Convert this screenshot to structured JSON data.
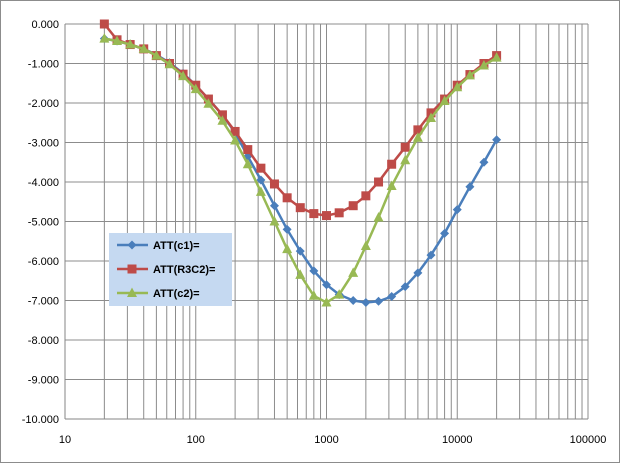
{
  "chart_data": {
    "type": "line",
    "title": "",
    "xlabel": "",
    "ylabel": "",
    "x_scale": "log",
    "xlim": [
      10,
      100000
    ],
    "ylim": [
      -10,
      0
    ],
    "x_tick_labels": [
      "10",
      "100",
      "1000",
      "10000",
      "100000"
    ],
    "y_tick_labels": [
      "0.000",
      "-1.000",
      "-2.000",
      "-3.000",
      "-4.000",
      "-5.000",
      "-6.000",
      "-7.000",
      "-8.000",
      "-9.000",
      "-10.000"
    ],
    "grid": true,
    "legend_position": "center-left",
    "series": [
      {
        "name": "ATT(c1)=",
        "color": "#4a7ebb",
        "marker": "diamond",
        "x": [
          20,
          25,
          31.5,
          40,
          50,
          63,
          80,
          100,
          125,
          160,
          200,
          250,
          315,
          400,
          500,
          630,
          800,
          1000,
          1250,
          1600,
          2000,
          2500,
          3150,
          4000,
          5000,
          6300,
          8000,
          10000,
          12500,
          16000,
          20000
        ],
        "y": [
          -0.37,
          -0.43,
          -0.52,
          -0.63,
          -0.78,
          -0.98,
          -1.25,
          -1.55,
          -1.9,
          -2.3,
          -2.75,
          -3.35,
          -3.95,
          -4.6,
          -5.2,
          -5.75,
          -6.25,
          -6.6,
          -6.85,
          -7.0,
          -7.05,
          -7.02,
          -6.9,
          -6.65,
          -6.3,
          -5.85,
          -5.3,
          -4.7,
          -4.12,
          -3.5,
          -2.93
        ]
      },
      {
        "name": "ATT(R3C2)=",
        "color": "#be4b48",
        "marker": "square",
        "x": [
          20,
          25,
          31.5,
          40,
          50,
          63,
          80,
          100,
          125,
          160,
          200,
          250,
          315,
          400,
          500,
          630,
          800,
          1000,
          1250,
          1600,
          2000,
          2500,
          3150,
          4000,
          5000,
          6300,
          8000,
          10000,
          12500,
          16000,
          20000
        ],
        "y": [
          0.0,
          -0.4,
          -0.52,
          -0.63,
          -0.8,
          -1.0,
          -1.27,
          -1.55,
          -1.9,
          -2.3,
          -2.72,
          -3.18,
          -3.65,
          -4.05,
          -4.4,
          -4.65,
          -4.8,
          -4.85,
          -4.78,
          -4.6,
          -4.35,
          -4.0,
          -3.55,
          -3.12,
          -2.68,
          -2.25,
          -1.9,
          -1.55,
          -1.28,
          -1.0,
          -0.8
        ]
      },
      {
        "name": "ATT(c2)=",
        "color": "#98b954",
        "marker": "triangle",
        "x": [
          20,
          25,
          31.5,
          40,
          50,
          63,
          80,
          100,
          125,
          160,
          200,
          250,
          315,
          400,
          500,
          630,
          800,
          1000,
          1250,
          1600,
          2000,
          2500,
          3150,
          4000,
          5000,
          6300,
          8000,
          10000,
          12500,
          16000,
          20000
        ],
        "y": [
          -0.37,
          -0.43,
          -0.52,
          -0.63,
          -0.8,
          -1.02,
          -1.32,
          -1.65,
          -2.02,
          -2.45,
          -2.95,
          -3.55,
          -4.25,
          -5.0,
          -5.7,
          -6.35,
          -6.88,
          -7.05,
          -6.85,
          -6.3,
          -5.62,
          -4.9,
          -4.1,
          -3.45,
          -2.88,
          -2.38,
          -1.95,
          -1.6,
          -1.3,
          -1.05,
          -0.85
        ]
      }
    ]
  }
}
